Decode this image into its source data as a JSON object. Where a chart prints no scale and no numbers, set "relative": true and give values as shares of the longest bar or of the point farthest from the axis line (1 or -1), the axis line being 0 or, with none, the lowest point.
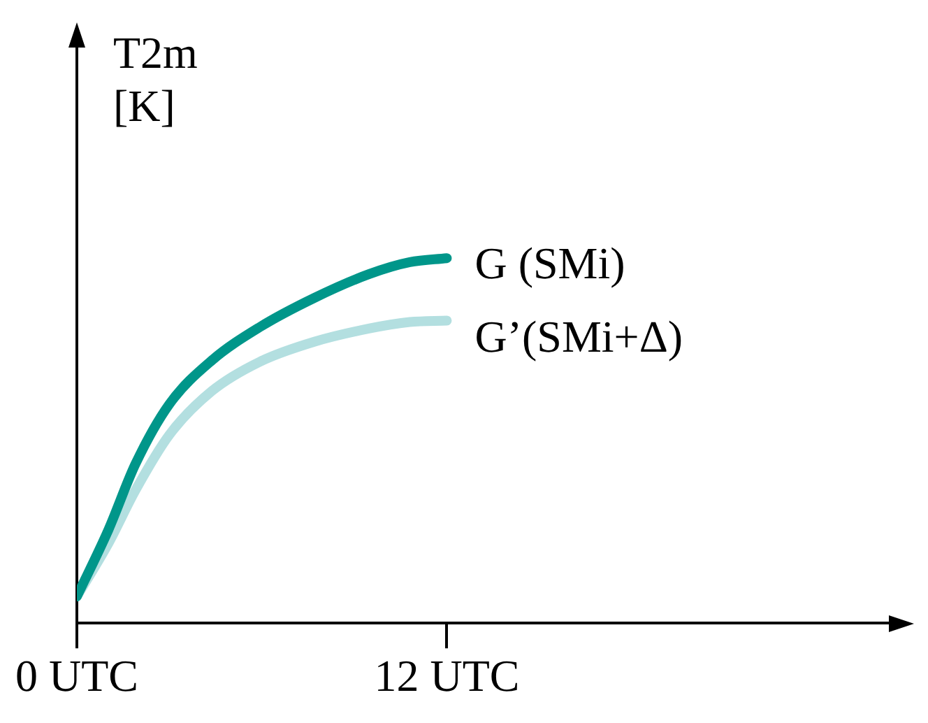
{
  "chart_data": {
    "type": "line",
    "relative": true,
    "ylabel": "T2m [K]",
    "xlim": [
      0,
      26.7
    ],
    "xticks": [
      {
        "value": 0,
        "label": "0 UTC"
      },
      {
        "value": 12,
        "label": "12 UTC"
      }
    ],
    "grid": false,
    "legend": false,
    "marker": "none",
    "line_style": "solid",
    "series": [
      {
        "name": "G (SMi)",
        "color": "#00968a",
        "x": [
          0,
          1.02,
          1.9,
          3.0,
          4.38,
          5.93,
          7.7,
          9.47,
          10.8,
          12
        ],
        "values": [
          0.073,
          0.255,
          0.436,
          0.6,
          0.72,
          0.811,
          0.891,
          0.956,
          0.989,
          1
        ]
      },
      {
        "name": "G’(SMi+Δ)",
        "color": "#b3dfe0",
        "x": [
          0,
          1.02,
          1.9,
          3.0,
          4.38,
          5.93,
          7.7,
          9.47,
          10.8,
          12
        ],
        "values": [
          0.073,
          0.218,
          0.364,
          0.516,
          0.636,
          0.716,
          0.771,
          0.807,
          0.825,
          0.829
        ]
      }
    ]
  }
}
